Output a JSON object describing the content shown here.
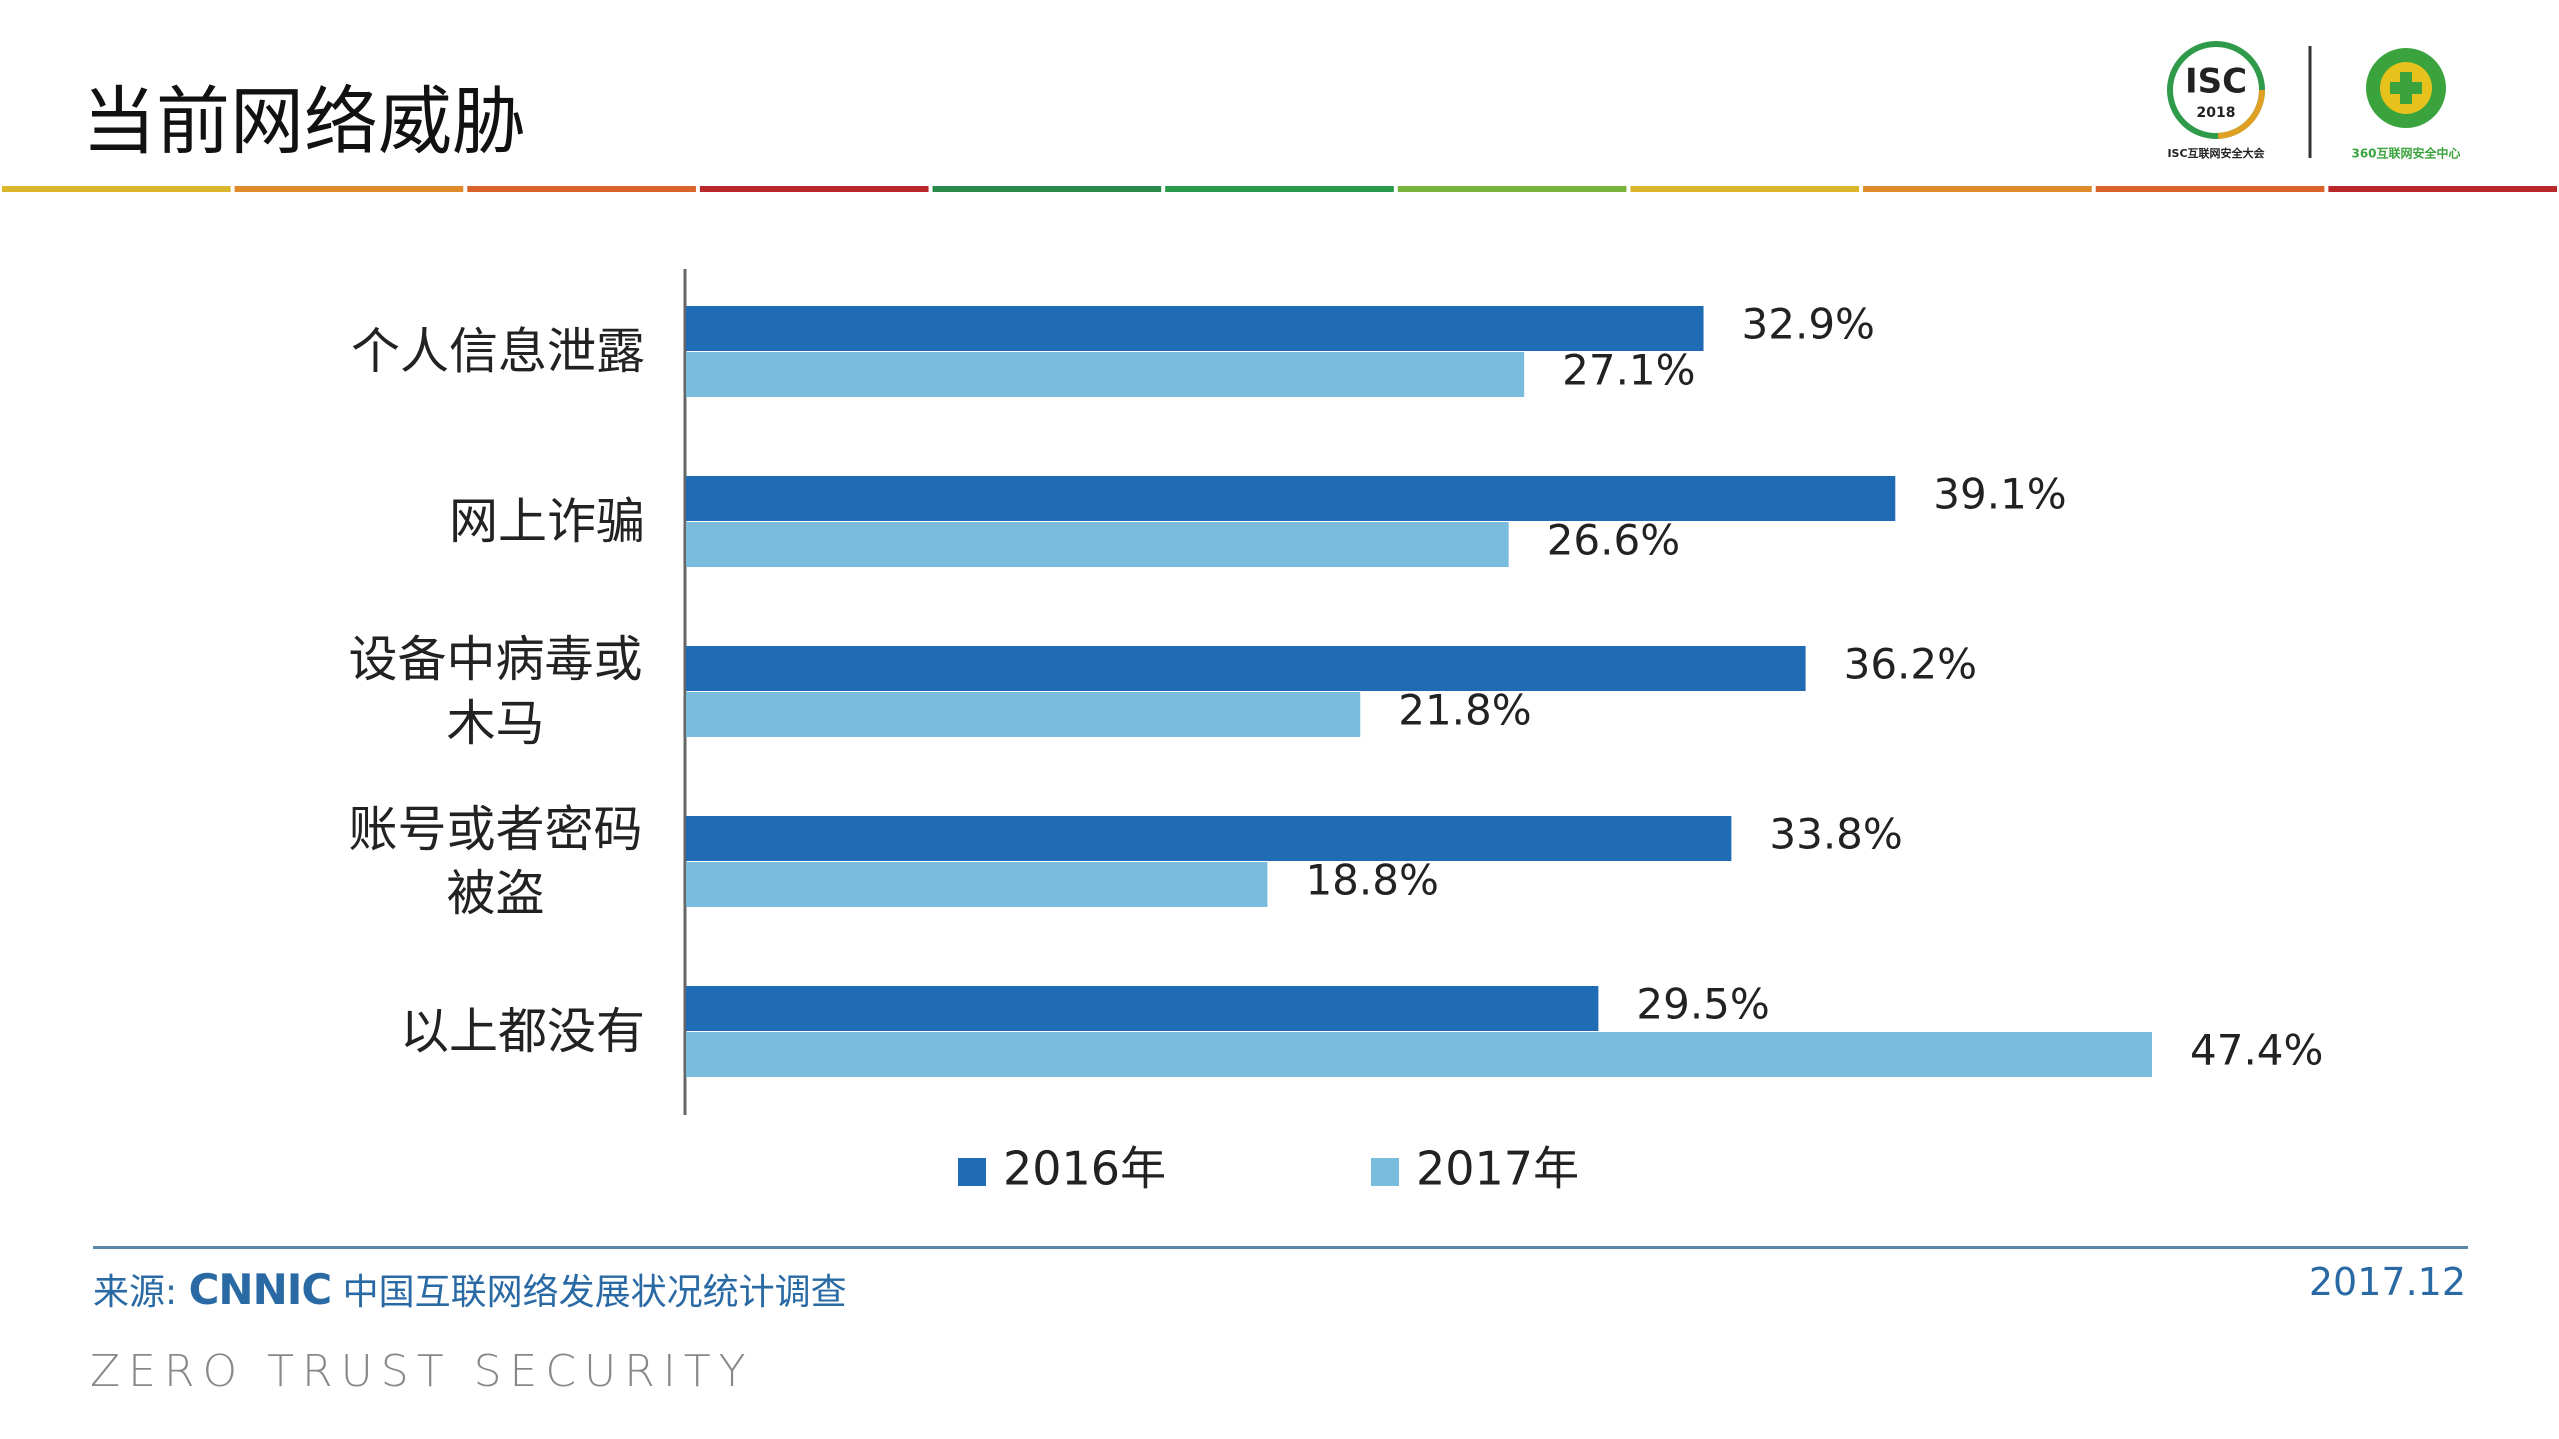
{
  "header": {
    "title": "当前网络威胁",
    "logo_isc": "ISC",
    "logo_isc_year": "2018",
    "logo_isc_caption": "ISC互联网安全大会",
    "logo_360_caption": "360互联网安全中心"
  },
  "chart_data": {
    "type": "hbar",
    "categories": [
      "个人信息泄露",
      "网上诈骗",
      "设备中病毒或木马",
      "账号或者密码被盗",
      "以上都没有"
    ],
    "series": [
      {
        "name": "2016年",
        "color": "#1f6cb4",
        "values": [
          32.9,
          39.1,
          36.2,
          33.8,
          29.5
        ],
        "value_labels": [
          "32.9%",
          "39.1%",
          "36.2%",
          "33.8%",
          "29.5%"
        ]
      },
      {
        "name": "2017年",
        "color": "#79bcdd",
        "values": [
          27.1,
          26.6,
          21.8,
          18.8,
          47.4
        ],
        "value_labels": [
          "27.1%",
          "26.6%",
          "21.8%",
          "18.8%",
          "47.4%"
        ]
      }
    ]
  },
  "footer": {
    "source_prefix": "来源:",
    "source_org": "CNNIC",
    "source_name": "中国互联网络发展状况统计调查",
    "date": "2017.12",
    "tagline": "ZERO TRUST SECURITY"
  }
}
